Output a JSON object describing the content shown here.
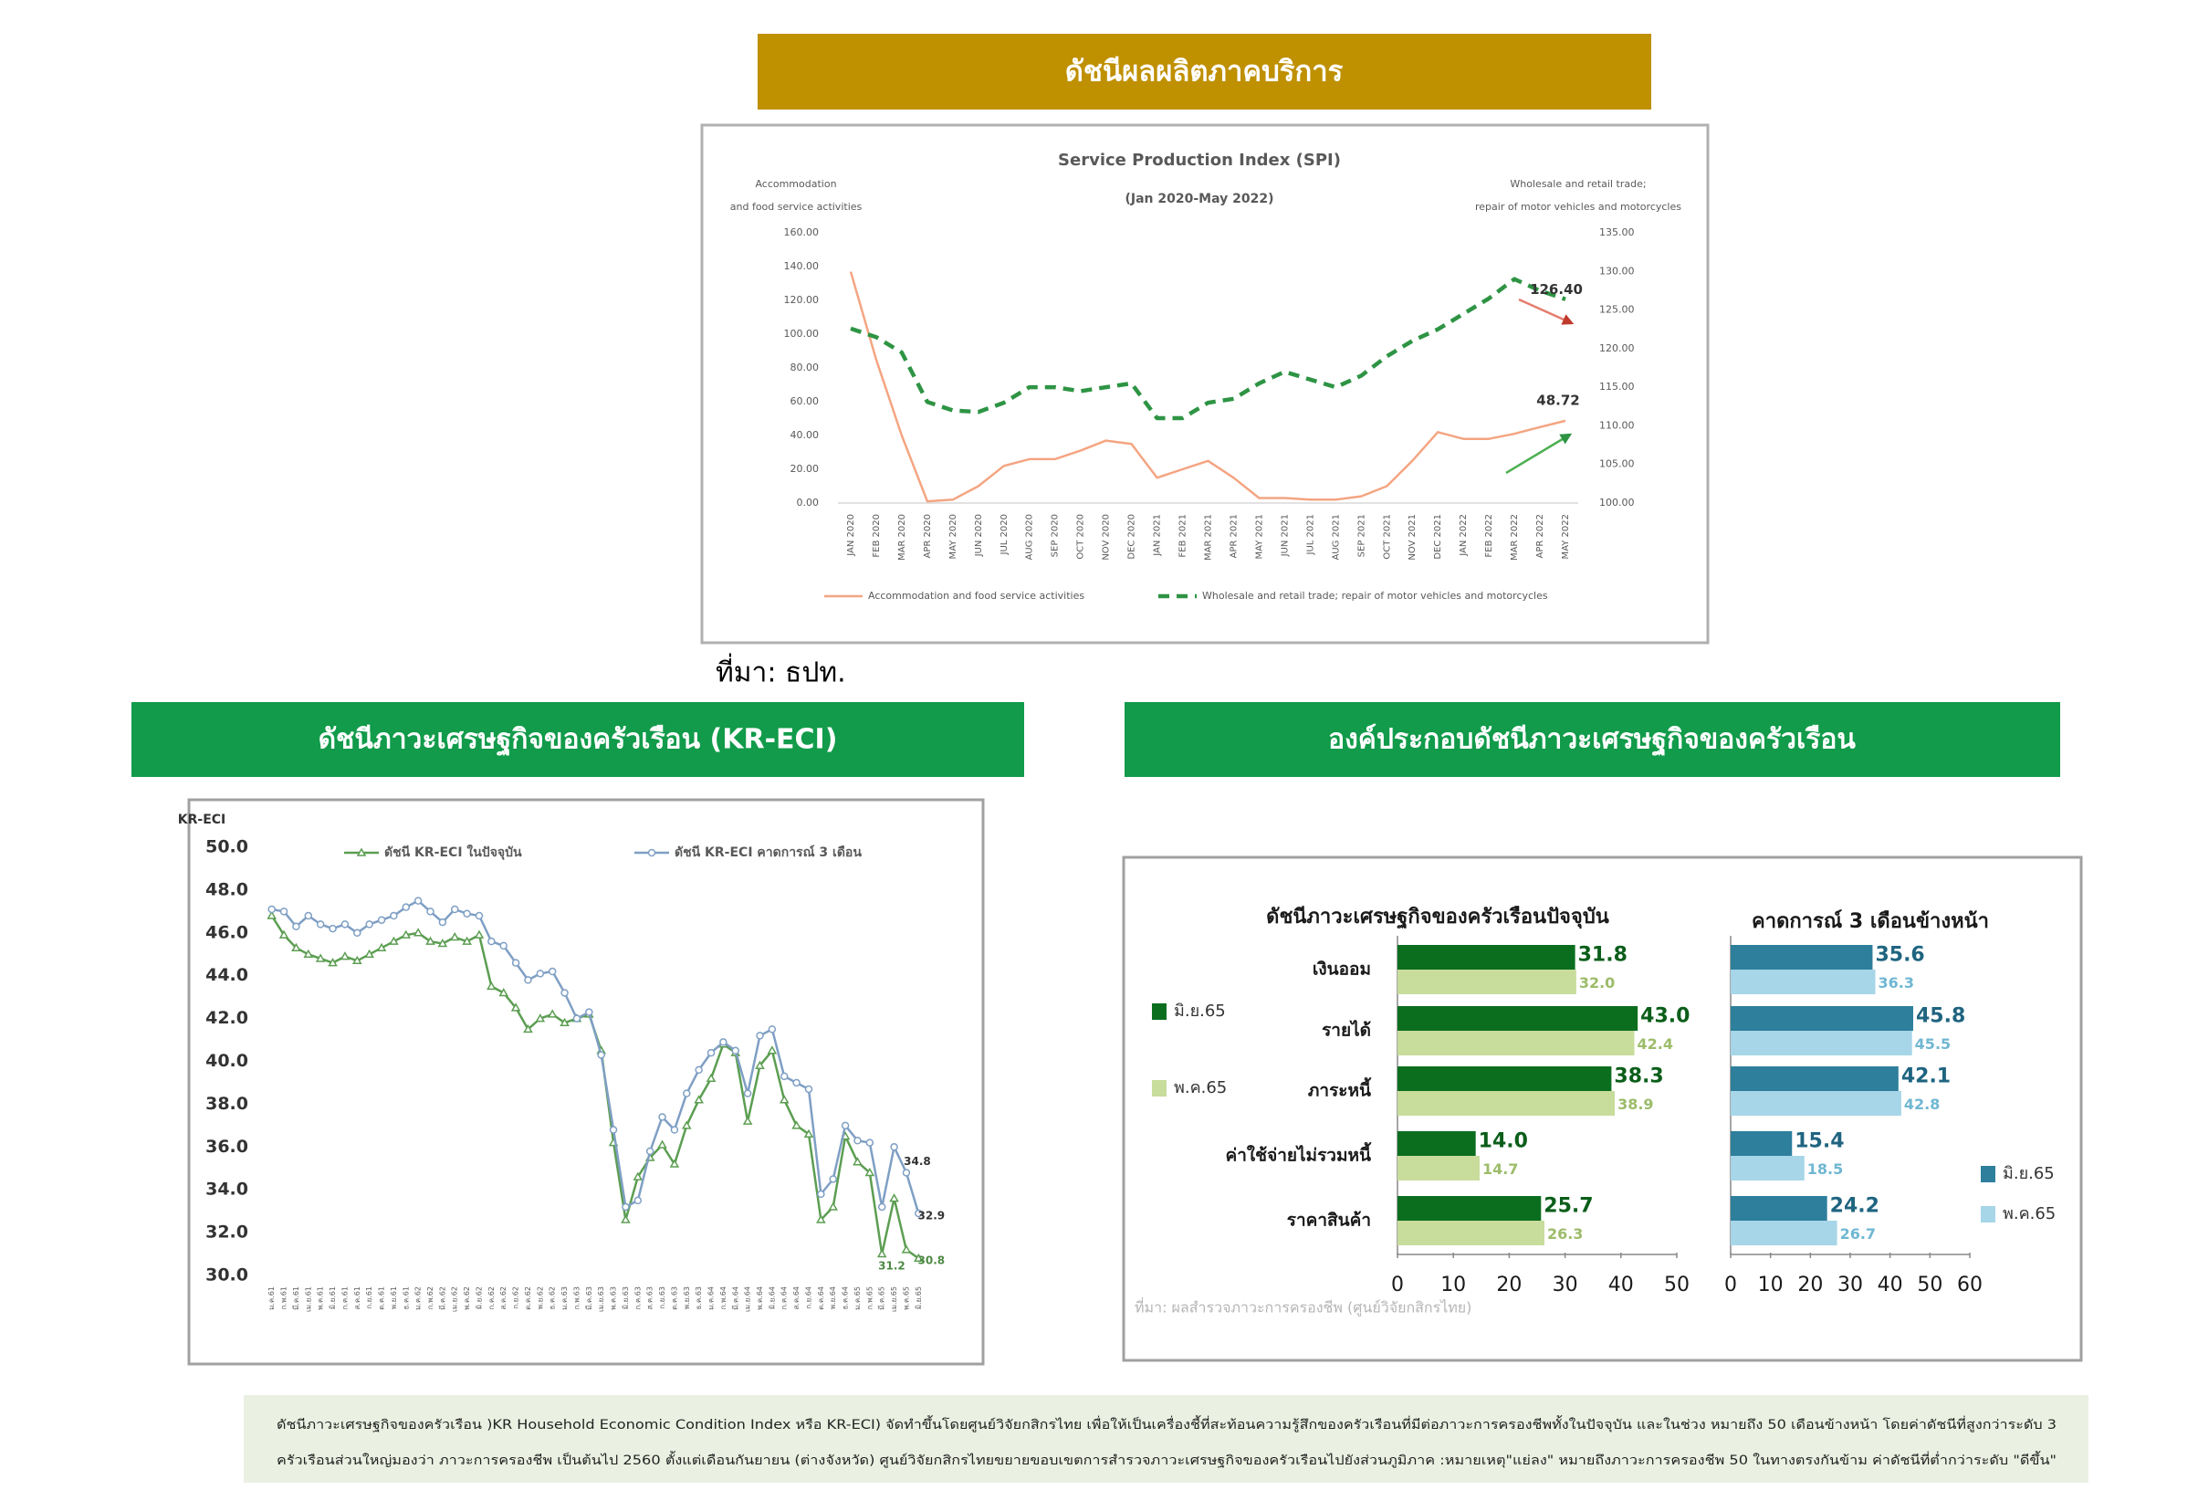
{
  "header": "ดัชนีผลผลิตภาคบริการ",
  "spi_source": "ที่มา: ธปท.",
  "eci_header": "ดัชนีภาวะเศรษฐกิจของครัวเรือน (KR-ECI)",
  "components_header": "องค์ประกอบดัชนีภาวะเศรษฐกิจของครัวเรือน",
  "footer": {
    "lines": [
      "ดัชนีภาวะเศรษฐกิจของครัวเรือน )KR Household Economic Condition Index หรือ KR-ECI) จัดทำขึ้นโดยศูนย์วิจัยกสิกรไทย เพื่อให้เป็นเครื่องชี้ที่สะท้อนความรู้สึกของครัวเรือนที่มีต่อภาวะการครองชีพทั้งในปัจจุบัน และในช่วง หมายถึง  50 เดือนข้างหน้า โดยค่าดัชนีที่สูงกว่าระดับ 3",
      "ครัวเรือนส่วนใหญ่มองว่า ภาวะการครองชีพ เป็นต้นไป 2560 ตั้งแต่เดือนกันยายน (ต่างจังหวัด) ศูนย์วิจัยกสิกรไทยขยายขอบเขตการสำรวจภาวะเศรษฐกิจของครัวเรือนไปยังส่วนภูมิภาค :หมายเหตุ\"แย่ลง\" หมายถึงภาวะการครองชีพ 50 ในทางตรงกันข้าม ค่าดัชนีที่ต่ำกว่าระดับ \"ดีขึ้น\""
    ]
  },
  "chart_data": [
    {
      "type": "line",
      "title": "Service Production Index  (SPI)",
      "subtitle": "(Jan 2020-May 2022)",
      "ylabel": [
        "Accommodation",
        "and food service activities"
      ],
      "y2label": [
        "Wholesale and retail trade;",
        "repair of motor vehicles and motorcycles"
      ],
      "categories": [
        "JAN 2020",
        "FEB 2020",
        "MAR 2020",
        "APR 2020",
        "MAY 2020",
        "JUN 2020",
        "JUL 2020",
        "AUG 2020",
        "SEP 2020",
        "OCT 2020",
        "NOV 2020",
        "DEC 2020",
        "JAN 2021",
        "FEB 2021",
        "MAR 2021",
        "APR 2021",
        "MAY 2021",
        "JUN 2021",
        "JUL 2021",
        "AUG 2021",
        "SEP 2021",
        "OCT 2021",
        "NOV 2021",
        "DEC 2021",
        "JAN 2022",
        "FEB 2022",
        "MAR 2022",
        "APR 2022",
        "MAY 2022"
      ],
      "series": [
        {
          "name": "Accommodation and food service activities",
          "color": "#f4a582",
          "dash": false,
          "values": [
            137,
            85,
            40,
            1,
            2,
            10,
            22,
            26,
            26,
            31,
            37,
            35,
            15,
            20,
            25,
            15,
            3,
            3,
            2,
            2,
            4,
            10,
            25,
            42,
            38,
            38,
            41,
            45,
            48.72
          ],
          "value_labels": [
            null,
            null,
            null,
            null,
            null,
            null,
            null,
            null,
            null,
            null,
            null,
            null,
            null,
            null,
            null,
            null,
            null,
            null,
            null,
            null,
            null,
            null,
            null,
            null,
            null,
            null,
            null,
            null,
            "48.72"
          ]
        },
        {
          "name": "Wholesale and retail trade; repair of motor vehicles and motorcycles",
          "color": "#2e9444",
          "dash": true,
          "axis": "y2",
          "values": [
            122.6,
            121.5,
            119.5,
            113.1,
            112,
            111.8,
            113,
            115,
            115,
            114.5,
            115,
            115.5,
            111,
            111,
            113,
            113.5,
            115.5,
            117,
            116,
            115,
            116.5,
            119,
            121,
            122.5,
            124.5,
            126.5,
            129,
            127.5,
            126.4
          ],
          "value_labels": [
            null,
            null,
            null,
            null,
            null,
            null,
            null,
            null,
            null,
            null,
            null,
            null,
            null,
            null,
            null,
            null,
            null,
            null,
            null,
            null,
            null,
            null,
            null,
            null,
            null,
            null,
            null,
            null,
            "126.40"
          ]
        }
      ],
      "ylim": [
        0,
        160
      ],
      "yticks": [
        {
          "value": 0,
          "label": "0.00"
        },
        {
          "value": 20,
          "label": "20.00"
        },
        {
          "value": 40,
          "label": "40.00"
        },
        {
          "value": 60,
          "label": "60.00"
        },
        {
          "value": 80,
          "label": "80.00"
        },
        {
          "value": 100,
          "label": "100.00"
        },
        {
          "value": 120,
          "label": "120.00"
        },
        {
          "value": 140,
          "label": "140.00"
        },
        {
          "value": 160,
          "label": "160.00"
        }
      ],
      "y2lim": [
        100,
        135
      ],
      "y2ticks": [
        {
          "value": 100,
          "label": "100.00"
        },
        {
          "value": 105,
          "label": "105.00"
        },
        {
          "value": 110,
          "label": "110.00"
        },
        {
          "value": 115,
          "label": "115.00"
        },
        {
          "value": 120,
          "label": "120.00"
        },
        {
          "value": 125,
          "label": "125.00"
        },
        {
          "value": 130,
          "label": "130.00"
        },
        {
          "value": 135,
          "label": "135.00"
        }
      ],
      "grid": false,
      "legend": "bottom"
    },
    {
      "type": "line",
      "ylabel": "KR-ECI",
      "categories": [
        "ม.ค.61",
        "ก.พ.61",
        "มี.ค.61",
        "เม.ย.61",
        "พ.ค.61",
        "มิ.ย.61",
        "ก.ค.61",
        "ส.ค.61",
        "ก.ย.61",
        "ต.ค.61",
        "พ.ย.61",
        "ธ.ค.61",
        "ม.ค.62",
        "ก.พ.62",
        "มี.ค.62",
        "เม.ย.62",
        "พ.ค.62",
        "มิ.ย.62",
        "ก.ค.62",
        "ส.ค.62",
        "ก.ย.62",
        "ต.ค.62",
        "พ.ย.62",
        "ธ.ค.62",
        "ม.ค.63",
        "ก.พ.63",
        "มี.ค.63",
        "เม.ย.63",
        "พ.ค.63",
        "มิ.ย.63",
        "ก.ค.63",
        "ส.ค.63",
        "ก.ย.63",
        "ต.ค.63",
        "พ.ย.63",
        "ธ.ค.63",
        "ม.ค.64",
        "ก.พ.64",
        "มี.ค.64",
        "เม.ย.64",
        "พ.ค.64",
        "มิ.ย.64",
        "ก.ค.64",
        "ส.ค.64",
        "ก.ย.64",
        "ต.ค.64",
        "พ.ย.64",
        "ธ.ค.64",
        "ม.ค.65",
        "ก.พ.65",
        "มี.ค.65",
        "เม.ย.65",
        "พ.ค.65",
        "มิ.ย.65"
      ],
      "series": [
        {
          "name": "ดัชนี KR-ECI ในปัจจุบัน",
          "color": "#5c9e52",
          "marker": "triangle",
          "values": [
            46.8,
            45.9,
            45.3,
            45.0,
            44.8,
            44.6,
            44.9,
            44.7,
            45.0,
            45.3,
            45.6,
            45.9,
            46.0,
            45.6,
            45.5,
            45.8,
            45.6,
            45.9,
            43.5,
            43.2,
            42.5,
            41.5,
            42.0,
            42.2,
            41.8,
            42.0,
            42.2,
            40.5,
            36.2,
            32.6,
            34.6,
            35.5,
            36.1,
            35.2,
            37.0,
            38.2,
            39.2,
            40.8,
            40.4,
            37.2,
            39.8,
            40.5,
            38.2,
            37.0,
            36.6,
            32.6,
            33.2,
            36.5,
            35.3,
            34.8,
            31.0,
            33.6,
            31.2,
            30.8
          ]
        },
        {
          "name": "ดัชนี KR-ECI คาดการณ์ 3 เดือน",
          "color": "#7f9fc4",
          "marker": "circle",
          "values": [
            47.1,
            47.0,
            46.3,
            46.8,
            46.4,
            46.2,
            46.4,
            46.0,
            46.4,
            46.6,
            46.8,
            47.2,
            47.5,
            47.0,
            46.5,
            47.1,
            46.9,
            46.8,
            45.6,
            45.4,
            44.6,
            43.8,
            44.1,
            44.2,
            43.2,
            42.0,
            42.3,
            40.3,
            36.8,
            33.2,
            33.5,
            35.8,
            37.4,
            36.8,
            38.5,
            39.6,
            40.4,
            40.9,
            40.5,
            38.5,
            41.2,
            41.5,
            39.3,
            39.0,
            38.7,
            33.8,
            34.5,
            37.0,
            36.3,
            36.2,
            33.2,
            36.0,
            34.8,
            32.9
          ]
        }
      ],
      "ylim": [
        30,
        50
      ],
      "yticks": [
        {
          "value": 30,
          "label": "30.0"
        },
        {
          "value": 32,
          "label": "32.0"
        },
        {
          "value": 34,
          "label": "34.0"
        },
        {
          "value": 36,
          "label": "36.0"
        },
        {
          "value": 38,
          "label": "38.0"
        },
        {
          "value": 40,
          "label": "40.0"
        },
        {
          "value": 42,
          "label": "42.0"
        },
        {
          "value": 44,
          "label": "44.0"
        },
        {
          "value": 46,
          "label": "46.0"
        },
        {
          "value": 48,
          "label": "48.0"
        },
        {
          "value": 50,
          "label": "50.0"
        }
      ],
      "grid": false,
      "legend": "top"
    },
    {
      "type": "bar",
      "orientation": "horizontal",
      "title": "ดัชนีภาวะเศรษฐกิจของครัวเรือนปัจจุบัน",
      "categories": [
        "เงินออม",
        "รายได้",
        "ภาระหนี้",
        "ค่าใช้จ่ายไม่รวมหนี้",
        "ราคาสินค้า"
      ],
      "series": [
        {
          "name": "มิ.ย.65",
          "color": "#0b6e1f",
          "values": [
            31.8,
            43.0,
            38.3,
            14.0,
            25.7
          ],
          "value_labels": [
            "31.8",
            "43.0",
            "38.3",
            "14.0",
            "25.7"
          ]
        },
        {
          "name": "พ.ค.65",
          "color": "#c8dc9c",
          "values": [
            32.0,
            42.4,
            38.9,
            14.7,
            26.3
          ],
          "value_labels": [
            "32.0",
            "42.4",
            "38.9",
            "14.7",
            "26.3"
          ]
        }
      ],
      "xlim": [
        0,
        50
      ],
      "xticks": [
        0,
        10,
        20,
        30,
        40,
        50
      ],
      "source": "ที่มา: ผลสำรวจภาวะการครองชีพ (ศูนย์วิจัยกสิกรไทย)",
      "legend": "left"
    },
    {
      "type": "bar",
      "orientation": "horizontal",
      "title": "คาดการณ์ 3 เดือนข้างหน้า",
      "series": [
        {
          "name": "มิ.ย.65",
          "color": "#2d7f9c",
          "values": [
            35.6,
            45.8,
            42.1,
            15.4,
            24.2
          ],
          "value_labels": [
            "35.6",
            "45.8",
            "42.1",
            "15.4",
            "24.2"
          ]
        },
        {
          "name": "พ.ค.65",
          "color": "#a6d6e8",
          "values": [
            36.3,
            45.5,
            42.8,
            18.5,
            26.7
          ],
          "value_labels": [
            "36.3",
            "45.5",
            "42.8",
            "18.5",
            "26.7"
          ]
        }
      ],
      "xlim": [
        0,
        60
      ],
      "xticks": [
        0,
        10,
        20,
        30,
        40,
        50,
        60
      ],
      "legend": "right"
    }
  ]
}
